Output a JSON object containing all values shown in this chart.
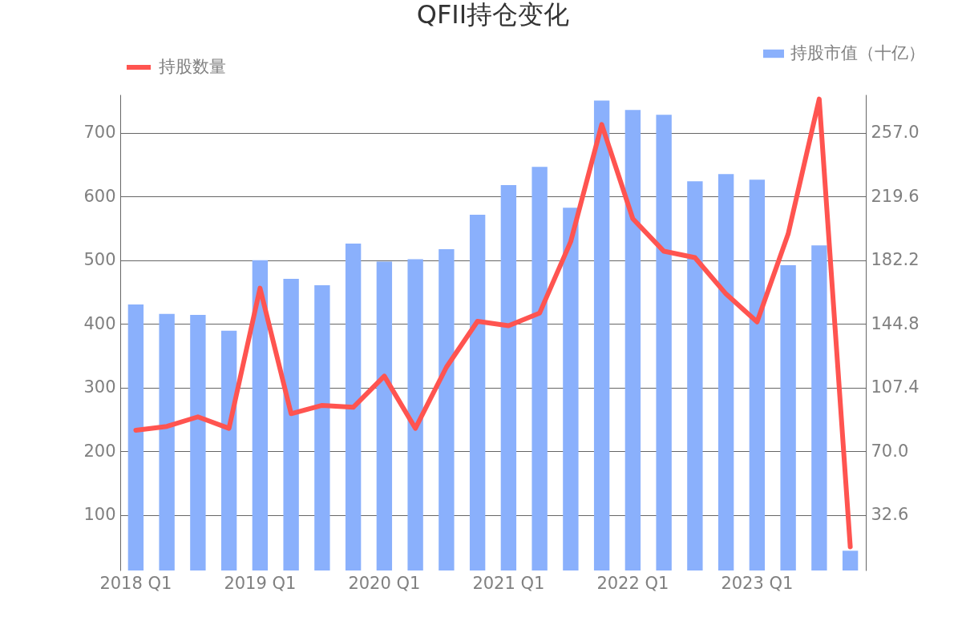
{
  "chart_data": {
    "type": "bar",
    "title": "QFII持仓变化",
    "categories": [
      "2018 Q1",
      null,
      null,
      null,
      "2019 Q1",
      null,
      null,
      null,
      "2020 Q1",
      null,
      null,
      null,
      "2021 Q1",
      null,
      null,
      null,
      "2022 Q1",
      null,
      null,
      null,
      "2023 Q1",
      null,
      null,
      null
    ],
    "series": [
      {
        "name": "持股数量",
        "type": "line",
        "color": "#ff5450",
        "values": [
          233,
          239,
          254,
          236,
          456,
          259,
          272,
          269,
          318,
          236,
          332,
          404,
          397,
          417,
          529,
          713,
          565,
          514,
          504,
          447,
          403,
          541,
          753,
          50
        ]
      },
      {
        "name": "持股市值（十亿）",
        "type": "bar",
        "axis": "y2",
        "color": "#8ab0fc",
        "values": [
          156.2,
          150.6,
          150.1,
          140.7,
          182.2,
          171.2,
          167.5,
          191.9,
          181.3,
          182.7,
          188.6,
          208.8,
          226.2,
          237.0,
          213.0,
          275.9,
          270.3,
          267.5,
          228.5,
          232.7,
          229.4,
          179.2,
          190.9,
          11.6
        ]
      }
    ],
    "ylim": [
      12.8,
      760
    ],
    "yticks": [
      100,
      200,
      300,
      400,
      500,
      600,
      700
    ],
    "y2lim": [
      0,
      279.4
    ],
    "y2ticks": [
      32.6,
      {
        "value": 70,
        "label": "70.0"
      },
      107.4,
      144.8,
      182.2,
      219.6,
      {
        "value": 257,
        "label": "257.0"
      }
    ],
    "grid": "y",
    "legend": "top"
  }
}
